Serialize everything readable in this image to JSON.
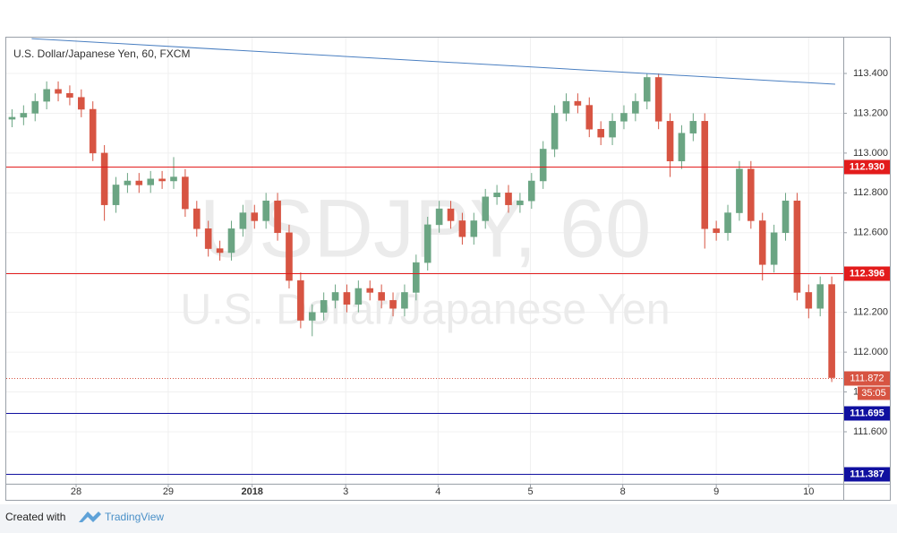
{
  "chart_data": {
    "type": "candlestick",
    "title": "U.S. Dollar/Japanese Yen, 60, FXCM",
    "watermark": "USDJPY, 60",
    "watermark_subtitle": "U.S. Dollar/Japanese Yen",
    "open": [
      113.17,
      113.18,
      113.2,
      113.26,
      113.32,
      113.3,
      113.28,
      113.22,
      113.0,
      112.74,
      112.84,
      112.86,
      112.84,
      112.87,
      112.86,
      112.88,
      112.72,
      112.62,
      112.52,
      112.5,
      112.62,
      112.7,
      112.66,
      112.76,
      112.6,
      112.36,
      112.16,
      112.2,
      112.26,
      112.3,
      112.24,
      112.32,
      112.3,
      112.26,
      112.22,
      112.3,
      112.45,
      112.64,
      112.72,
      112.66,
      112.58,
      112.66,
      112.78,
      112.8,
      112.74,
      112.76,
      112.86,
      113.02,
      113.2,
      113.26,
      113.24,
      113.12,
      113.08,
      113.16,
      113.2,
      113.26,
      113.38,
      113.16,
      112.96,
      113.1,
      113.16,
      112.62,
      112.6,
      112.7,
      112.92,
      112.66,
      112.44,
      112.6,
      112.76,
      112.3,
      112.22,
      112.34
    ],
    "high": [
      113.22,
      113.24,
      113.3,
      113.36,
      113.36,
      113.34,
      113.32,
      113.26,
      113.04,
      112.88,
      112.9,
      112.9,
      112.91,
      112.91,
      112.98,
      112.92,
      112.76,
      112.66,
      112.56,
      112.66,
      112.74,
      112.74,
      112.8,
      112.8,
      112.64,
      112.4,
      112.24,
      112.3,
      112.34,
      112.34,
      112.36,
      112.36,
      112.34,
      112.3,
      112.34,
      112.49,
      112.68,
      112.76,
      112.76,
      112.7,
      112.7,
      112.82,
      112.84,
      112.84,
      112.8,
      112.9,
      113.06,
      113.24,
      113.3,
      113.3,
      113.28,
      113.16,
      113.2,
      113.24,
      113.3,
      113.4,
      113.4,
      113.2,
      113.14,
      113.2,
      113.2,
      112.66,
      112.74,
      112.96,
      112.96,
      112.7,
      112.64,
      112.8,
      112.8,
      112.34,
      112.38,
      112.38
    ],
    "low": [
      113.13,
      113.14,
      113.16,
      113.22,
      113.26,
      113.24,
      113.18,
      112.96,
      112.66,
      112.7,
      112.8,
      112.8,
      112.8,
      112.82,
      112.82,
      112.68,
      112.58,
      112.48,
      112.46,
      112.46,
      112.58,
      112.62,
      112.62,
      112.56,
      112.32,
      112.12,
      112.08,
      112.16,
      112.22,
      112.2,
      112.2,
      112.26,
      112.22,
      112.18,
      112.18,
      112.26,
      112.41,
      112.6,
      112.62,
      112.54,
      112.54,
      112.62,
      112.74,
      112.7,
      112.7,
      112.72,
      112.82,
      112.98,
      113.16,
      113.2,
      113.08,
      113.04,
      113.04,
      113.12,
      113.16,
      113.22,
      113.12,
      112.88,
      112.92,
      113.06,
      112.52,
      112.56,
      112.56,
      112.66,
      112.62,
      112.36,
      112.4,
      112.56,
      112.26,
      112.17,
      112.18,
      111.85
    ],
    "close": [
      113.18,
      113.2,
      113.26,
      113.32,
      113.3,
      113.28,
      113.22,
      113.0,
      112.74,
      112.84,
      112.86,
      112.84,
      112.87,
      112.86,
      112.88,
      112.72,
      112.62,
      112.52,
      112.5,
      112.62,
      112.7,
      112.66,
      112.76,
      112.6,
      112.36,
      112.16,
      112.2,
      112.26,
      112.3,
      112.24,
      112.32,
      112.3,
      112.26,
      112.22,
      112.3,
      112.45,
      112.64,
      112.72,
      112.66,
      112.58,
      112.66,
      112.78,
      112.8,
      112.74,
      112.76,
      112.86,
      113.02,
      113.2,
      113.26,
      113.24,
      113.12,
      113.08,
      113.16,
      113.2,
      113.26,
      113.38,
      113.16,
      112.96,
      113.1,
      113.16,
      112.62,
      112.6,
      112.7,
      112.92,
      112.66,
      112.44,
      112.6,
      112.76,
      112.3,
      112.22,
      112.34,
      111.872
    ],
    "up_color": "#6ba583",
    "down_color": "#d75442",
    "xlim": [
      0,
      72.5
    ],
    "xticks": [
      {
        "value": 6.05,
        "label": "28"
      },
      {
        "value": 14.03,
        "label": "29"
      },
      {
        "value": 21.3,
        "label": "2018"
      },
      {
        "value": 29.4,
        "label": "3"
      },
      {
        "value": 37.4,
        "label": "4"
      },
      {
        "value": 45.4,
        "label": "5"
      },
      {
        "value": 53.4,
        "label": "8"
      },
      {
        "value": 61.5,
        "label": "9"
      },
      {
        "value": 69.5,
        "label": "10"
      }
    ],
    "ylim": [
      111.339,
      113.58
    ],
    "yticks": [
      {
        "value": 111.6,
        "label": "111.600"
      },
      {
        "value": 111.8,
        "label": "111.800"
      },
      {
        "value": 112.0,
        "label": "112.000"
      },
      {
        "value": 112.2,
        "label": "112.200"
      },
      {
        "value": 112.4,
        "label": "112.400"
      },
      {
        "value": 112.6,
        "label": "112.600"
      },
      {
        "value": 112.8,
        "label": "112.800"
      },
      {
        "value": 113.0,
        "label": "113.000"
      },
      {
        "value": 113.2,
        "label": "113.200"
      },
      {
        "value": 113.4,
        "label": "113.400"
      }
    ],
    "grid": true,
    "levels": [
      {
        "value": 112.93,
        "label": "112.930",
        "color": "#e31c1c"
      },
      {
        "value": 112.396,
        "label": "112.396",
        "color": "#e31c1c"
      },
      {
        "value": 111.695,
        "label": "111.695",
        "color": "#1010a0"
      },
      {
        "value": 111.387,
        "label": "111.387",
        "color": "#1010a0"
      }
    ],
    "last_price": {
      "value": 111.872,
      "label": "111.872",
      "countdown": "35:05",
      "color": "#d75442"
    },
    "trendline": {
      "x": [
        2.2,
        71.8
      ],
      "y": [
        113.575,
        113.346
      ],
      "color": "#4a7fc1"
    },
    "footer": {
      "prefix": "Created with",
      "brand": "TradingView"
    }
  }
}
